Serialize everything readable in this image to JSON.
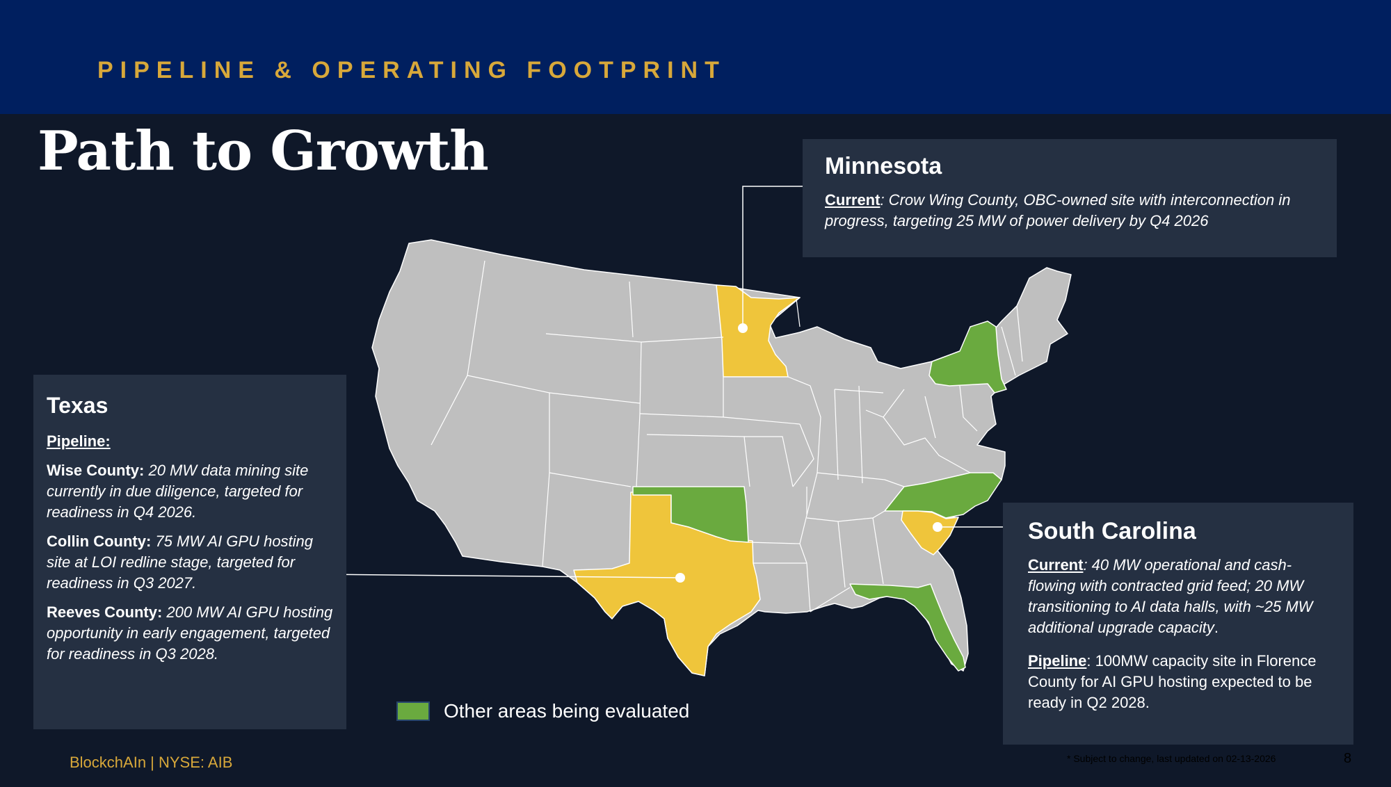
{
  "header": {
    "section_label": "PIPELINE & OPERATING FOOTPRINT",
    "title": "Path to Growth"
  },
  "minnesota": {
    "heading": "Minnesota",
    "current_label": "Current",
    "current_text": ": Crow Wing County, OBC-owned site with interconnection in progress, targeting 25 MW of power delivery by Q4 2026"
  },
  "texas": {
    "heading": "Texas",
    "pipeline_label": "Pipeline:",
    "items": [
      {
        "county": "Wise County:",
        "text": " 20 MW data mining site currently in due diligence, targeted for readiness in Q4 2026."
      },
      {
        "county": "Collin County:",
        "text": " 75 MW AI GPU hosting site at LOI redline stage, targeted for readiness in Q3 2027."
      },
      {
        "county": "Reeves County:",
        "text": " 200 MW AI GPU hosting opportunity in early engagement, targeted for readiness in Q3 2028."
      }
    ]
  },
  "south_carolina": {
    "heading": "South Carolina",
    "current_label": "Current",
    "current_text": ": 40 MW operational and cash-flowing with contracted grid feed; 20 MW transitioning to AI data halls, with ~25 MW additional upgrade capacity",
    "current_end": ".",
    "pipeline_label": "Pipeline",
    "pipeline_text": ": 100MW capacity site in Florence County for AI GPU hosting  expected to be ready in Q2 2028."
  },
  "map": {
    "colors": {
      "base": "#bfbfbf",
      "active": "#efc53b",
      "evaluated": "#6aaa3f",
      "border": "#ffffff"
    },
    "active_states": [
      "Minnesota",
      "Texas",
      "South Carolina"
    ],
    "evaluated_states": [
      "New York",
      "Oklahoma",
      "North Carolina",
      "Florida"
    ]
  },
  "legend": {
    "label": "Other areas being evaluated",
    "color": "#6aaa3f"
  },
  "footer": {
    "brand": "BlockchAIn  |  NYSE: AIB",
    "footnote": "* Subject to change, last updated on 02-13-2026",
    "page_number": "8"
  }
}
